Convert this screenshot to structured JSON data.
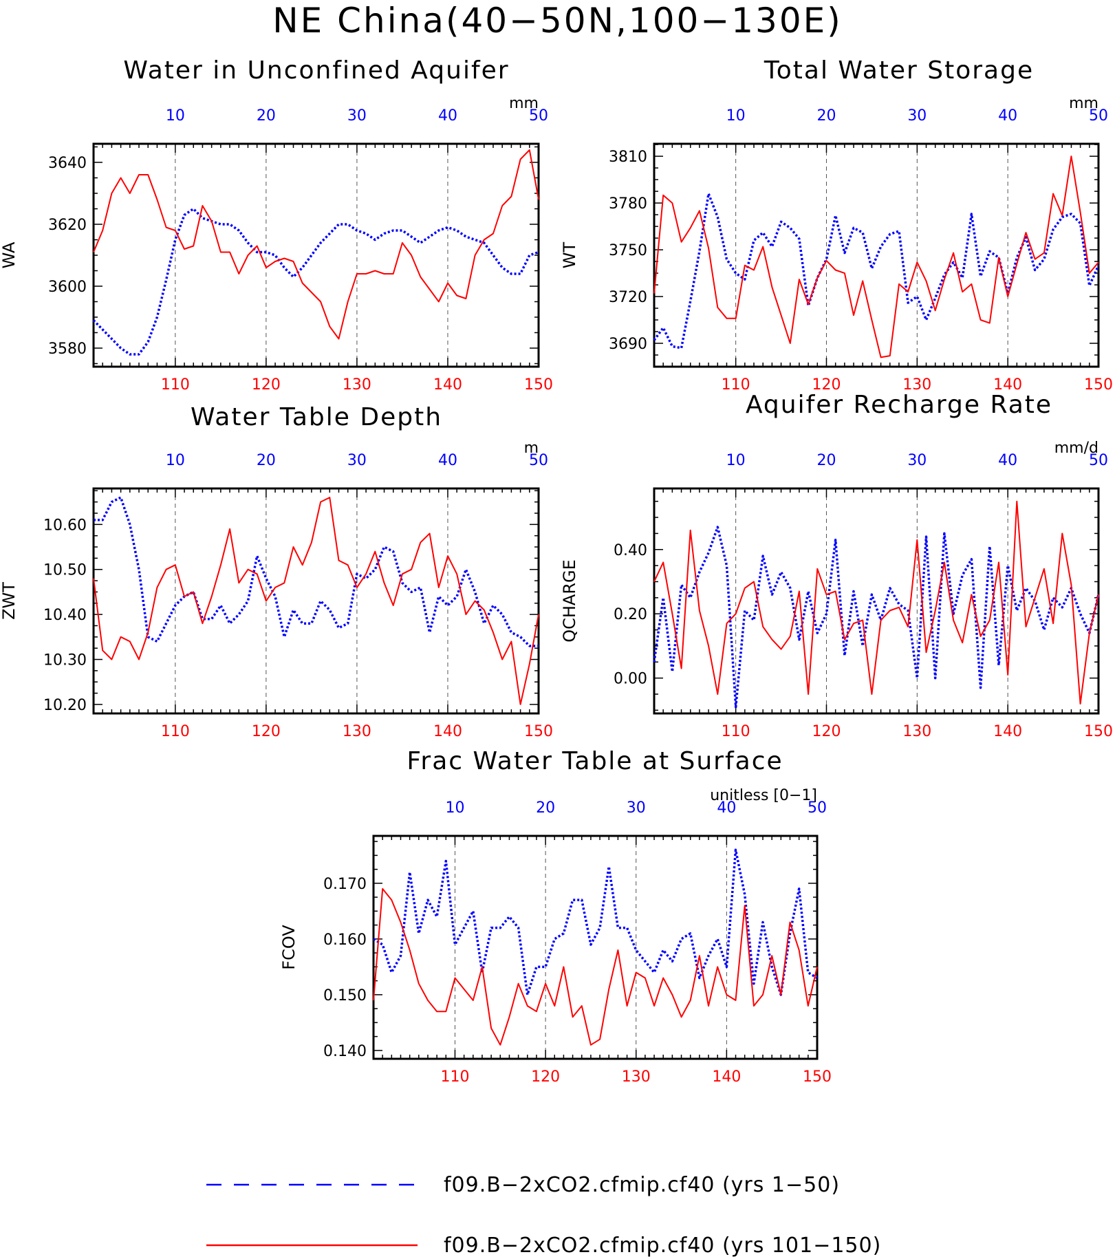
{
  "page_title": "NE China(40−50N,100−130E)",
  "legend": [
    {
      "label": "f09.B−2xCO2.cfmip.cf40 (yrs 1−50)",
      "color": "#0000ff",
      "dash": true
    },
    {
      "label": "f09.B−2xCO2.cfmip.cf40 (yrs 101−150)",
      "color": "#ff0000",
      "dash": false
    }
  ],
  "colors": {
    "top_axis": "#0000ff",
    "bottom_axis": "#ff0000",
    "axes": "#000000"
  },
  "chart_data": [
    {
      "type": "line",
      "title": "Water in Unconfined Aquifer",
      "units": "mm",
      "ylabel": "WA",
      "ylim": [
        3574,
        3646
      ],
      "yticks": [
        3580,
        3600,
        3620,
        3640
      ],
      "ytick_labels": [
        "3580",
        "3600",
        "3620",
        "3640"
      ],
      "grid": "dashed vertical at x ticks",
      "x_top": {
        "lim": [
          1,
          50
        ],
        "ticks": [
          10,
          20,
          30,
          40,
          50
        ],
        "labels": [
          "10",
          "20",
          "30",
          "40",
          "50"
        ]
      },
      "x_bottom": {
        "lim": [
          101,
          150
        ],
        "ticks": [
          110,
          120,
          130,
          140,
          150
        ],
        "labels": [
          "110",
          "120",
          "130",
          "140",
          "150"
        ]
      },
      "series": [
        {
          "axis": "top",
          "values": [
            3589,
            3586,
            3583,
            3580,
            3578,
            3578,
            3582,
            3590,
            3602,
            3615,
            3623,
            3625,
            3622,
            3621,
            3620,
            3620,
            3618,
            3614,
            3611,
            3611,
            3610,
            3606,
            3603,
            3606,
            3610,
            3614,
            3617,
            3620,
            3620,
            3618,
            3617,
            3615,
            3617,
            3618,
            3618,
            3616,
            3614,
            3616,
            3618,
            3619,
            3618,
            3616,
            3615,
            3614,
            3610,
            3606,
            3604,
            3604,
            3610,
            3611
          ]
        },
        {
          "axis": "bottom",
          "values": [
            3611,
            3618,
            3630,
            3635,
            3630,
            3636,
            3636,
            3628,
            3619,
            3618,
            3612,
            3613,
            3626,
            3621,
            3611,
            3611,
            3604,
            3610,
            3613,
            3606,
            3608,
            3609,
            3608,
            3601,
            3598,
            3595,
            3587,
            3583,
            3595,
            3604,
            3604,
            3605,
            3604,
            3604,
            3614,
            3610,
            3603,
            3599,
            3595,
            3601,
            3597,
            3596,
            3610,
            3615,
            3617,
            3626,
            3629,
            3641,
            3644,
            3628
          ]
        }
      ]
    },
    {
      "type": "line",
      "title": "Total Water Storage",
      "units": "mm",
      "ylabel": "WT",
      "ylim": [
        3675,
        3818
      ],
      "yticks": [
        3690,
        3720,
        3750,
        3780,
        3810
      ],
      "ytick_labels": [
        "3690",
        "3720",
        "3750",
        "3780",
        "3810"
      ],
      "grid": "dashed vertical at x ticks",
      "x_top": {
        "lim": [
          1,
          50
        ],
        "ticks": [
          10,
          20,
          30,
          40,
          50
        ],
        "labels": [
          "10",
          "20",
          "30",
          "40",
          "50"
        ]
      },
      "x_bottom": {
        "lim": [
          101,
          150
        ],
        "ticks": [
          110,
          120,
          130,
          140,
          150
        ],
        "labels": [
          "110",
          "120",
          "130",
          "140",
          "150"
        ]
      },
      "series": [
        {
          "axis": "top",
          "values": [
            3692,
            3700,
            3688,
            3687,
            3717,
            3749,
            3786,
            3771,
            3744,
            3735,
            3731,
            3756,
            3761,
            3752,
            3768,
            3764,
            3757,
            3714,
            3732,
            3744,
            3772,
            3748,
            3764,
            3761,
            3738,
            3752,
            3760,
            3762,
            3716,
            3720,
            3705,
            3719,
            3734,
            3742,
            3732,
            3773,
            3733,
            3749,
            3745,
            3722,
            3745,
            3758,
            3737,
            3744,
            3763,
            3771,
            3773,
            3767,
            3727,
            3740
          ]
        },
        {
          "axis": "bottom",
          "values": [
            3722,
            3785,
            3780,
            3755,
            3764,
            3775,
            3751,
            3713,
            3706,
            3706,
            3740,
            3737,
            3752,
            3726,
            3708,
            3690,
            3731,
            3715,
            3732,
            3743,
            3737,
            3735,
            3708,
            3730,
            3705,
            3681,
            3682,
            3728,
            3723,
            3742,
            3730,
            3711,
            3731,
            3748,
            3723,
            3728,
            3705,
            3703,
            3745,
            3720,
            3741,
            3761,
            3744,
            3748,
            3786,
            3772,
            3810,
            3774,
            3735,
            3742
          ]
        }
      ]
    },
    {
      "type": "line",
      "title": "Water Table Depth",
      "units": "m",
      "ylabel": "ZWT",
      "ylim": [
        10.18,
        10.68
      ],
      "yticks": [
        10.2,
        10.3,
        10.4,
        10.5,
        10.6
      ],
      "ytick_labels": [
        "10.20",
        "10.30",
        "10.40",
        "10.50",
        "10.60"
      ],
      "grid": "dashed vertical at x ticks",
      "x_top": {
        "lim": [
          1,
          50
        ],
        "ticks": [
          10,
          20,
          30,
          40,
          50
        ],
        "labels": [
          "10",
          "20",
          "30",
          "40",
          "50"
        ]
      },
      "x_bottom": {
        "lim": [
          101,
          150
        ],
        "ticks": [
          110,
          120,
          130,
          140,
          150
        ],
        "labels": [
          "110",
          "120",
          "130",
          "140",
          "150"
        ]
      },
      "series": [
        {
          "axis": "top",
          "values": [
            10.61,
            10.61,
            10.65,
            10.66,
            10.6,
            10.5,
            10.35,
            10.34,
            10.38,
            10.42,
            10.44,
            10.45,
            10.39,
            10.39,
            10.42,
            10.38,
            10.4,
            10.43,
            10.53,
            10.48,
            10.44,
            10.35,
            10.41,
            10.38,
            10.38,
            10.43,
            10.41,
            10.37,
            10.38,
            10.49,
            10.48,
            10.5,
            10.55,
            10.54,
            10.47,
            10.45,
            10.46,
            10.36,
            10.44,
            10.42,
            10.44,
            10.5,
            10.45,
            10.38,
            10.42,
            10.4,
            10.36,
            10.35,
            10.33,
            10.33
          ]
        },
        {
          "axis": "bottom",
          "values": [
            10.48,
            10.32,
            10.3,
            10.35,
            10.34,
            10.3,
            10.36,
            10.46,
            10.5,
            10.51,
            10.44,
            10.45,
            10.38,
            10.44,
            10.51,
            10.59,
            10.47,
            10.5,
            10.49,
            10.43,
            10.46,
            10.47,
            10.55,
            10.51,
            10.56,
            10.65,
            10.66,
            10.52,
            10.51,
            10.46,
            10.49,
            10.54,
            10.47,
            10.42,
            10.49,
            10.5,
            10.56,
            10.58,
            10.46,
            10.53,
            10.49,
            10.4,
            10.43,
            10.41,
            10.36,
            10.3,
            10.34,
            10.2,
            10.29,
            10.4
          ]
        }
      ]
    },
    {
      "type": "line",
      "title": "Aquifer Recharge Rate",
      "units": "mm/d",
      "ylabel": "QCHARGE",
      "ylim": [
        -0.11,
        0.59
      ],
      "yticks": [
        0.0,
        0.2,
        0.4
      ],
      "ytick_labels": [
        "0.00",
        "0.20",
        "0.40"
      ],
      "grid": "dashed vertical at x ticks",
      "x_top": {
        "lim": [
          1,
          50
        ],
        "ticks": [
          10,
          20,
          30,
          40,
          50
        ],
        "labels": [
          "10",
          "20",
          "30",
          "40",
          "50"
        ]
      },
      "x_bottom": {
        "lim": [
          101,
          150
        ],
        "ticks": [
          110,
          120,
          130,
          140,
          150
        ],
        "labels": [
          "110",
          "120",
          "130",
          "140",
          "150"
        ]
      },
      "series": [
        {
          "axis": "top",
          "values": [
            0.05,
            0.25,
            0.02,
            0.29,
            0.25,
            0.33,
            0.39,
            0.47,
            0.35,
            -0.09,
            0.21,
            0.18,
            0.38,
            0.26,
            0.33,
            0.28,
            0.12,
            0.27,
            0.14,
            0.2,
            0.43,
            0.07,
            0.27,
            0.1,
            0.26,
            0.18,
            0.28,
            0.23,
            0.21,
            0.0,
            0.44,
            0.0,
            0.45,
            0.2,
            0.32,
            0.37,
            -0.03,
            0.41,
            0.04,
            0.35,
            0.21,
            0.28,
            0.24,
            0.15,
            0.25,
            0.22,
            0.28,
            0.2,
            0.14,
            0.26
          ]
        },
        {
          "axis": "bottom",
          "values": [
            0.3,
            0.36,
            0.2,
            0.03,
            0.46,
            0.21,
            0.1,
            -0.05,
            0.17,
            0.2,
            0.28,
            0.3,
            0.16,
            0.12,
            0.09,
            0.13,
            0.27,
            -0.05,
            0.34,
            0.26,
            0.27,
            0.12,
            0.17,
            0.18,
            -0.05,
            0.18,
            0.21,
            0.22,
            0.16,
            0.43,
            0.08,
            0.21,
            0.36,
            0.18,
            0.11,
            0.26,
            0.13,
            0.18,
            0.36,
            0.01,
            0.55,
            0.16,
            0.25,
            0.34,
            0.17,
            0.45,
            0.29,
            -0.08,
            0.14,
            0.26
          ]
        }
      ]
    },
    {
      "type": "line",
      "title": "Frac Water Table at Surface",
      "units": "unitless [0−1]",
      "ylabel": "FCOV",
      "ylim": [
        0.1385,
        0.1785
      ],
      "yticks": [
        0.14,
        0.15,
        0.16,
        0.17
      ],
      "ytick_labels": [
        "0.140",
        "0.150",
        "0.160",
        "0.170"
      ],
      "grid": "dashed vertical at x ticks",
      "x_top": {
        "lim": [
          1,
          50
        ],
        "ticks": [
          10,
          20,
          30,
          40,
          50
        ],
        "labels": [
          "10",
          "20",
          "30",
          "40",
          "50"
        ]
      },
      "x_bottom": {
        "lim": [
          101,
          150
        ],
        "ticks": [
          110,
          120,
          130,
          140,
          150
        ],
        "labels": [
          "110",
          "120",
          "130",
          "140",
          "150"
        ]
      },
      "series": [
        {
          "axis": "top",
          "values": [
            0.16,
            0.159,
            0.154,
            0.157,
            0.172,
            0.161,
            0.167,
            0.164,
            0.174,
            0.159,
            0.162,
            0.165,
            0.154,
            0.162,
            0.162,
            0.164,
            0.162,
            0.15,
            0.155,
            0.155,
            0.16,
            0.161,
            0.167,
            0.167,
            0.159,
            0.162,
            0.173,
            0.162,
            0.162,
            0.158,
            0.156,
            0.154,
            0.158,
            0.156,
            0.16,
            0.161,
            0.153,
            0.157,
            0.16,
            0.155,
            0.176,
            0.168,
            0.152,
            0.163,
            0.155,
            0.15,
            0.161,
            0.169,
            0.154,
            0.153
          ]
        },
        {
          "axis": "bottom",
          "values": [
            0.149,
            0.169,
            0.167,
            0.163,
            0.158,
            0.152,
            0.149,
            0.147,
            0.147,
            0.153,
            0.151,
            0.149,
            0.155,
            0.144,
            0.141,
            0.146,
            0.152,
            0.148,
            0.147,
            0.152,
            0.148,
            0.155,
            0.146,
            0.148,
            0.141,
            0.142,
            0.151,
            0.158,
            0.148,
            0.154,
            0.153,
            0.148,
            0.153,
            0.15,
            0.146,
            0.149,
            0.157,
            0.148,
            0.155,
            0.15,
            0.149,
            0.166,
            0.148,
            0.15,
            0.157,
            0.15,
            0.163,
            0.158,
            0.148,
            0.155
          ]
        }
      ]
    }
  ]
}
